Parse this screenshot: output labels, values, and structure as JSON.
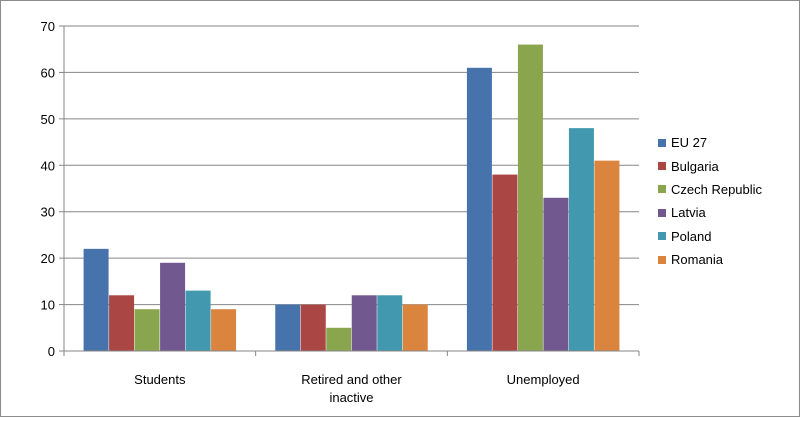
{
  "chart_data": {
    "type": "bar",
    "categories": [
      "Students",
      "Retired and other inactive",
      "Unemployed"
    ],
    "category_lines": [
      [
        "Students"
      ],
      [
        "Retired and other",
        "inactive"
      ],
      [
        "Unemployed"
      ]
    ],
    "series": [
      {
        "name": "EU 27",
        "color": "#4673AB",
        "values": [
          22,
          10,
          61
        ]
      },
      {
        "name": "Bulgaria",
        "color": "#AA4643",
        "values": [
          12,
          10,
          38
        ]
      },
      {
        "name": "Czech Republic",
        "color": "#89A54E",
        "values": [
          9,
          5,
          66
        ]
      },
      {
        "name": "Latvia",
        "color": "#71588F",
        "values": [
          19,
          12,
          33
        ]
      },
      {
        "name": "Poland",
        "color": "#4198AF",
        "values": [
          13,
          12,
          48
        ]
      },
      {
        "name": "Romania",
        "color": "#DB843D",
        "values": [
          9,
          10,
          41
        ]
      }
    ],
    "yticks": [
      "0",
      "10",
      "20",
      "30",
      "40",
      "50",
      "60",
      "70"
    ],
    "ylim": [
      0,
      70
    ],
    "grid": true,
    "legend_position": "right"
  }
}
